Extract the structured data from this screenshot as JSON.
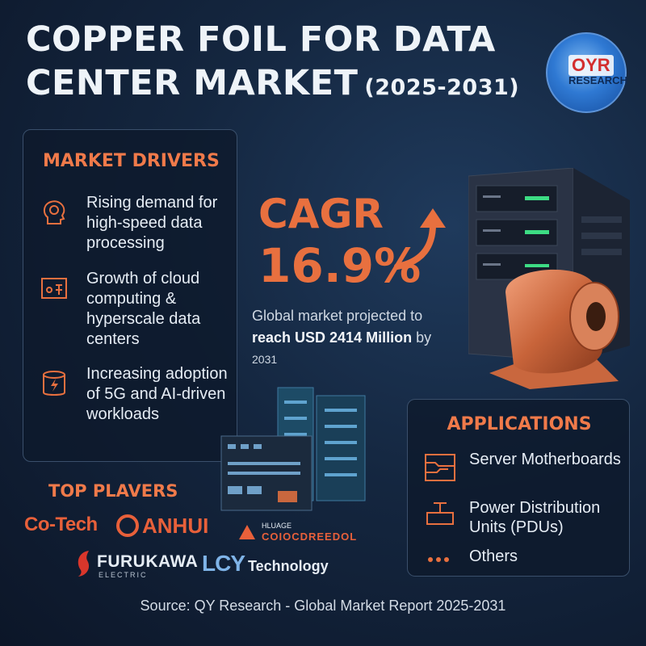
{
  "header": {
    "title_line1": "COPPER FOIL FOR DATA",
    "title_line2": "CENTER MARKET",
    "years": "(2025-2031)"
  },
  "logo": {
    "oyr": "OYR",
    "research": "RESEARCH"
  },
  "drivers": {
    "title": "MARKET DRIVERS",
    "items": [
      {
        "icon": "head-gear-icon",
        "text": "Rising demand for high-speed data processing"
      },
      {
        "icon": "cloud-network-icon",
        "text": "Growth of cloud computing & hyperscale data centers"
      },
      {
        "icon": "database-bolt-icon",
        "text": "Increasing adoption of 5G and AI-driven workloads"
      }
    ]
  },
  "cagr": {
    "label": "CAGR",
    "value": "16.9%",
    "projection_line1": "Global market projected to",
    "projection_bold": "reach USD 2414 Million",
    "projection_by": "by",
    "projection_year": "2031"
  },
  "applications": {
    "title": "APPLICATIONS",
    "items": [
      {
        "icon": "circuit-board-icon",
        "text": "Server Motherboards"
      },
      {
        "icon": "power-distribution-icon",
        "text": "Power Distribution Units (PDUs)"
      },
      {
        "icon": "dots-icon",
        "text": "Others"
      }
    ]
  },
  "players": {
    "title": "TOP PLAVERS",
    "list": [
      {
        "name": "Co-Tech"
      },
      {
        "name": "ANHUI"
      },
      {
        "small": "HLUAGE",
        "name": "COIOCDREEDOL"
      },
      {
        "name": "FURUKAWA",
        "sub": "ELECTRIC"
      },
      {
        "name": "LCY",
        "suffix": "Technology"
      }
    ]
  },
  "footer": {
    "source": "Source: QY Research - Global Market Report 2025-2031"
  },
  "colors": {
    "accent": "#e8703f",
    "background": "#14263f",
    "text": "#e6edf5"
  }
}
